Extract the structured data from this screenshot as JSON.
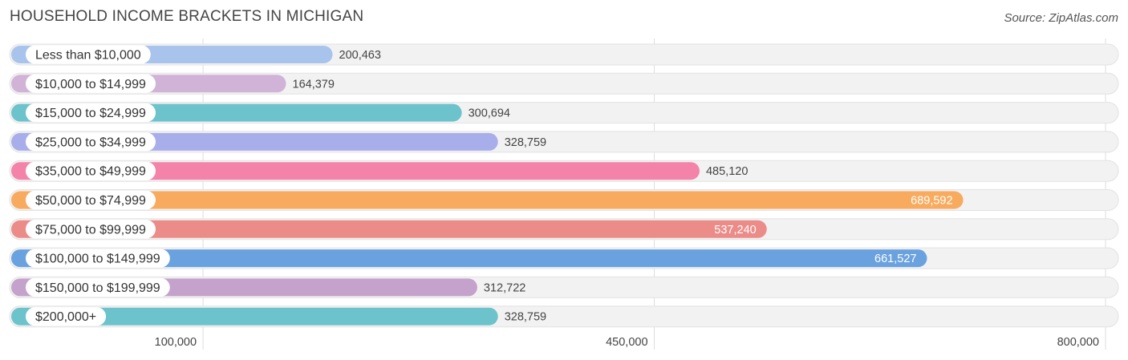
{
  "chart_data": {
    "type": "bar",
    "orientation": "horizontal",
    "title": "HOUSEHOLD INCOME BRACKETS IN MICHIGAN",
    "source": "Source: ZipAtlas.com",
    "categories": [
      "Less than $10,000",
      "$10,000 to $14,999",
      "$15,000 to $24,999",
      "$25,000 to $34,999",
      "$35,000 to $49,999",
      "$50,000 to $74,999",
      "$75,000 to $99,999",
      "$100,000 to $149,999",
      "$150,000 to $199,999",
      "$200,000+"
    ],
    "values": [
      200463,
      164379,
      300694,
      328759,
      485120,
      689592,
      537240,
      661527,
      312722,
      328759
    ],
    "value_labels": [
      "200,463",
      "164,379",
      "300,694",
      "328,759",
      "485,120",
      "689,592",
      "537,240",
      "661,527",
      "312,722",
      "328,759"
    ],
    "colors": [
      "#a9c4ec",
      "#d2b3d8",
      "#6cc3cc",
      "#a8aeea",
      "#f483a9",
      "#f8ab5e",
      "#eb8c89",
      "#6aa2df",
      "#c4a2cb",
      "#6cc3cc"
    ],
    "xticks": [
      100000,
      450000,
      800000
    ],
    "xtick_labels": [
      "100,000",
      "450,000",
      "800,000"
    ],
    "xlim": [
      -50000,
      800000
    ],
    "xlabel": "",
    "ylabel": "",
    "grid": true
  }
}
